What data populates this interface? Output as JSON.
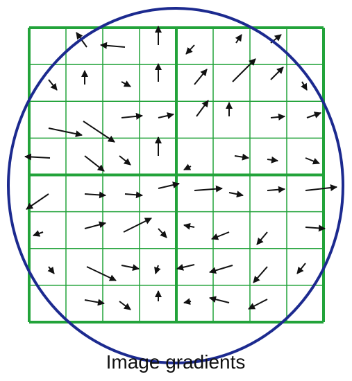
{
  "caption": "Image gradients"
}
